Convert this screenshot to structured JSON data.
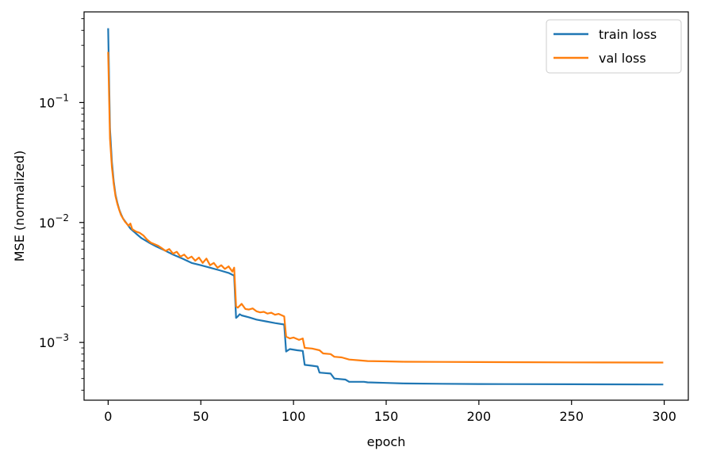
{
  "chart_data": {
    "type": "line",
    "title": "",
    "xlabel": "epoch",
    "ylabel": "MSE (normalized)",
    "xlim": [
      -13,
      313
    ],
    "ylim": [
      0.00033,
      0.57
    ],
    "yscale": "log",
    "grid": false,
    "legend_position": "top-right",
    "x_ticks": [
      0,
      50,
      100,
      150,
      200,
      250,
      300
    ],
    "x_tick_labels": [
      "0",
      "50",
      "100",
      "150",
      "200",
      "250",
      "300"
    ],
    "y_ticks": [
      0.001,
      0.01,
      0.1
    ],
    "y_tick_labels": [
      {
        "base": "10",
        "exp": "−3"
      },
      {
        "base": "10",
        "exp": "−2"
      },
      {
        "base": "10",
        "exp": "−1"
      }
    ],
    "series": [
      {
        "name": "train loss",
        "color": "#1f77b4",
        "points": [
          [
            0,
            0.41
          ],
          [
            1,
            0.06
          ],
          [
            2,
            0.032
          ],
          [
            3,
            0.022
          ],
          [
            4,
            0.017
          ],
          [
            5,
            0.0145
          ],
          [
            6,
            0.0128
          ],
          [
            7,
            0.0117
          ],
          [
            8,
            0.0108
          ],
          [
            10,
            0.0098
          ],
          [
            12,
            0.0089
          ],
          [
            15,
            0.0081
          ],
          [
            18,
            0.0074
          ],
          [
            22,
            0.0068
          ],
          [
            26,
            0.0063
          ],
          [
            30,
            0.0059
          ],
          [
            35,
            0.0054
          ],
          [
            40,
            0.005
          ],
          [
            45,
            0.0046
          ],
          [
            50,
            0.0044
          ],
          [
            55,
            0.0042
          ],
          [
            60,
            0.004
          ],
          [
            65,
            0.0038
          ],
          [
            68,
            0.0036
          ],
          [
            69,
            0.0016
          ],
          [
            70,
            0.00165
          ],
          [
            71,
            0.00172
          ],
          [
            72,
            0.00168
          ],
          [
            76,
            0.00162
          ],
          [
            80,
            0.00155
          ],
          [
            85,
            0.0015
          ],
          [
            90,
            0.00145
          ],
          [
            95,
            0.00141
          ],
          [
            96,
            0.00084
          ],
          [
            98,
            0.00088
          ],
          [
            102,
            0.00086
          ],
          [
            105,
            0.00085
          ],
          [
            106,
            0.00065
          ],
          [
            110,
            0.00064
          ],
          [
            113,
            0.00063
          ],
          [
            114,
            0.00056
          ],
          [
            120,
            0.00055
          ],
          [
            122,
            0.0005
          ],
          [
            128,
            0.00049
          ],
          [
            130,
            0.00047
          ],
          [
            138,
            0.00047
          ],
          [
            140,
            0.000465
          ],
          [
            150,
            0.00046
          ],
          [
            160,
            0.000455
          ],
          [
            180,
            0.000452
          ],
          [
            200,
            0.00045
          ],
          [
            250,
            0.000448
          ],
          [
            299,
            0.000446
          ]
        ]
      },
      {
        "name": "val loss",
        "color": "#ff7f0e",
        "points": [
          [
            0,
            0.26
          ],
          [
            1,
            0.05
          ],
          [
            2,
            0.029
          ],
          [
            3,
            0.021
          ],
          [
            4,
            0.0165
          ],
          [
            5,
            0.0142
          ],
          [
            6,
            0.0127
          ],
          [
            7,
            0.0115
          ],
          [
            9,
            0.0102
          ],
          [
            11,
            0.0094
          ],
          [
            12,
            0.0098
          ],
          [
            13,
            0.0088
          ],
          [
            15,
            0.0084
          ],
          [
            17,
            0.0082
          ],
          [
            19,
            0.0078
          ],
          [
            21,
            0.0072
          ],
          [
            23,
            0.0068
          ],
          [
            25,
            0.0066
          ],
          [
            27,
            0.0064
          ],
          [
            29,
            0.0061
          ],
          [
            31,
            0.0058
          ],
          [
            33,
            0.006
          ],
          [
            35,
            0.0055
          ],
          [
            37,
            0.0057
          ],
          [
            39,
            0.0052
          ],
          [
            41,
            0.0054
          ],
          [
            43,
            0.005
          ],
          [
            45,
            0.0052
          ],
          [
            47,
            0.0048
          ],
          [
            49,
            0.0051
          ],
          [
            51,
            0.0046
          ],
          [
            53,
            0.005
          ],
          [
            55,
            0.0044
          ],
          [
            57,
            0.0046
          ],
          [
            59,
            0.0042
          ],
          [
            61,
            0.0044
          ],
          [
            63,
            0.0041
          ],
          [
            65,
            0.0043
          ],
          [
            67,
            0.0039
          ],
          [
            68,
            0.0042
          ],
          [
            69,
            0.002
          ],
          [
            70,
            0.00195
          ],
          [
            72,
            0.0021
          ],
          [
            74,
            0.0019
          ],
          [
            76,
            0.00188
          ],
          [
            78,
            0.00192
          ],
          [
            80,
            0.00182
          ],
          [
            82,
            0.00178
          ],
          [
            84,
            0.0018
          ],
          [
            86,
            0.00174
          ],
          [
            88,
            0.00177
          ],
          [
            90,
            0.0017
          ],
          [
            92,
            0.00173
          ],
          [
            95,
            0.00165
          ],
          [
            96,
            0.00112
          ],
          [
            98,
            0.00108
          ],
          [
            100,
            0.0011
          ],
          [
            103,
            0.00105
          ],
          [
            105,
            0.00108
          ],
          [
            106,
            0.0009
          ],
          [
            110,
            0.00089
          ],
          [
            114,
            0.00086
          ],
          [
            116,
            0.00081
          ],
          [
            120,
            0.0008
          ],
          [
            122,
            0.00076
          ],
          [
            126,
            0.00075
          ],
          [
            130,
            0.00072
          ],
          [
            135,
            0.00071
          ],
          [
            140,
            0.0007
          ],
          [
            150,
            0.000695
          ],
          [
            160,
            0.00069
          ],
          [
            180,
            0.000688
          ],
          [
            200,
            0.000686
          ],
          [
            250,
            0.000682
          ],
          [
            299,
            0.00068
          ]
        ]
      }
    ]
  }
}
